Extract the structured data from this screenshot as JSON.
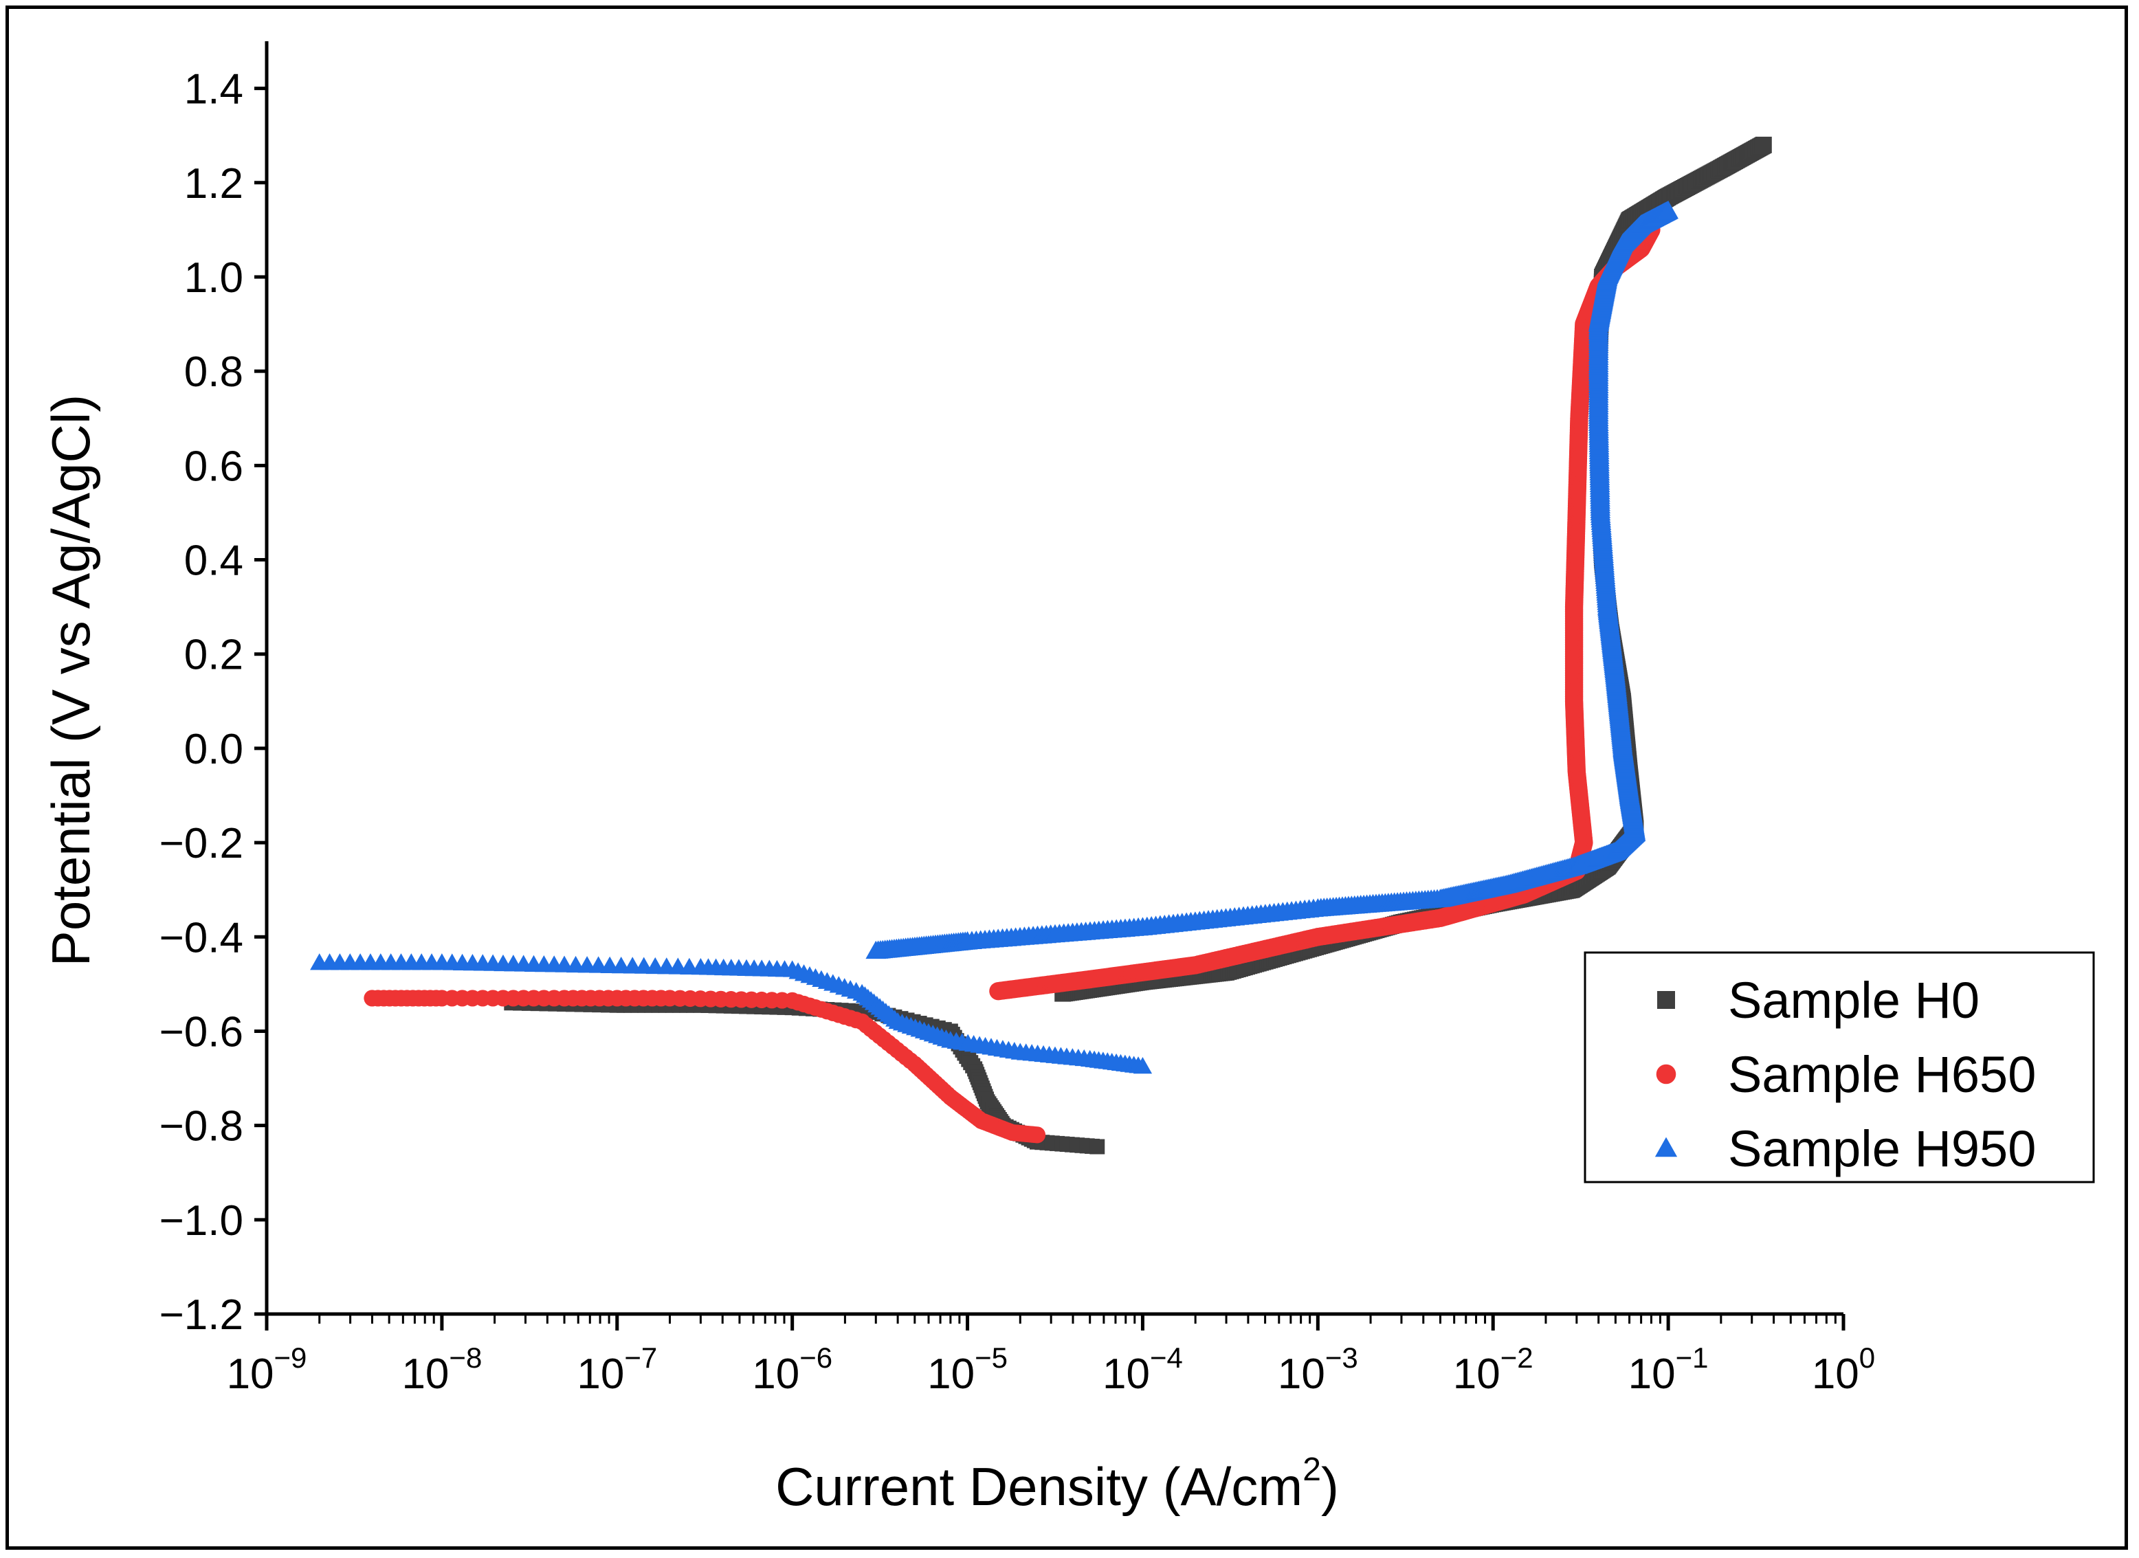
{
  "chart_data": {
    "type": "scatter",
    "title": "",
    "xlabel": {
      "main": "Current Density (A/cm",
      "sup": "2",
      "close": ")"
    },
    "ylabel": "Potential (V vs Ag/AgCl)",
    "x_scale": "log",
    "xlim": [
      1e-09,
      1
    ],
    "ylim": [
      -1.2,
      1.5
    ],
    "x_ticks": [
      {
        "base": "10",
        "exp": "−9",
        "value": 1e-09
      },
      {
        "base": "10",
        "exp": "−8",
        "value": 1e-08
      },
      {
        "base": "10",
        "exp": "−7",
        "value": 1e-07
      },
      {
        "base": "10",
        "exp": "−6",
        "value": 1e-06
      },
      {
        "base": "10",
        "exp": "−5",
        "value": 1e-05
      },
      {
        "base": "10",
        "exp": "−4",
        "value": 0.0001
      },
      {
        "base": "10",
        "exp": "−3",
        "value": 0.001
      },
      {
        "base": "10",
        "exp": "−2",
        "value": 0.01
      },
      {
        "base": "10",
        "exp": "−1",
        "value": 0.1
      },
      {
        "base": "10",
        "exp": "0",
        "value": 1
      }
    ],
    "y_ticks": [
      {
        "label": "1.4",
        "value": 1.4
      },
      {
        "label": "1.2",
        "value": 1.2
      },
      {
        "label": "1.0",
        "value": 1.0
      },
      {
        "label": "0.8",
        "value": 0.8
      },
      {
        "label": "0.6",
        "value": 0.6
      },
      {
        "label": "0.4",
        "value": 0.4
      },
      {
        "label": "0.2",
        "value": 0.2
      },
      {
        "label": "0.0",
        "value": 0.0
      },
      {
        "label": "−0.2",
        "value": -0.2
      },
      {
        "label": "−0.4",
        "value": -0.4
      },
      {
        "label": "−0.6",
        "value": -0.6
      },
      {
        "label": "−0.8",
        "value": -0.8
      },
      {
        "label": "−1.0",
        "value": -1.0
      },
      {
        "label": "−1.2",
        "value": -1.2
      }
    ],
    "legend_position": "lower-right",
    "series": [
      {
        "name": "Sample H0",
        "marker": "square",
        "color": "#3f3f3f",
        "anodic": [
          [
            3.5e-05,
            -0.52
          ],
          [
            0.0001,
            -0.495
          ],
          [
            0.0003,
            -0.475
          ],
          [
            0.001,
            -0.42
          ],
          [
            0.003,
            -0.37
          ],
          [
            0.01,
            -0.33
          ],
          [
            0.028,
            -0.3
          ],
          [
            0.045,
            -0.25
          ],
          [
            0.065,
            -0.17
          ],
          [
            0.06,
            -0.05
          ],
          [
            0.055,
            0.1
          ],
          [
            0.047,
            0.25
          ],
          [
            0.042,
            0.4
          ],
          [
            0.04,
            0.6
          ],
          [
            0.04,
            0.8
          ],
          [
            0.042,
            1.0
          ],
          [
            0.06,
            1.12
          ],
          [
            0.1,
            1.17
          ],
          [
            0.2,
            1.23
          ],
          [
            0.35,
            1.28
          ]
        ],
        "cathodic": [
          [
            2.5e-08,
            -0.54
          ],
          [
            1e-07,
            -0.545
          ],
          [
            3e-07,
            -0.545
          ],
          [
            1e-06,
            -0.55
          ],
          [
            3e-06,
            -0.56
          ],
          [
            8e-06,
            -0.6
          ],
          [
            1.1e-05,
            -0.68
          ],
          [
            1.3e-05,
            -0.75
          ],
          [
            1.6e-05,
            -0.8
          ],
          [
            2.5e-05,
            -0.835
          ],
          [
            5.5e-05,
            -0.845
          ]
        ]
      },
      {
        "name": "Sample H650",
        "marker": "circle",
        "color": "#ee3434",
        "anodic": [
          [
            1.5e-05,
            -0.515
          ],
          [
            5e-05,
            -0.49
          ],
          [
            0.0002,
            -0.46
          ],
          [
            0.001,
            -0.4
          ],
          [
            0.005,
            -0.36
          ],
          [
            0.015,
            -0.31
          ],
          [
            0.03,
            -0.26
          ],
          [
            0.033,
            -0.2
          ],
          [
            0.03,
            -0.05
          ],
          [
            0.029,
            0.1
          ],
          [
            0.029,
            0.3
          ],
          [
            0.03,
            0.5
          ],
          [
            0.031,
            0.7
          ],
          [
            0.033,
            0.9
          ],
          [
            0.04,
            0.98
          ],
          [
            0.05,
            1.02
          ],
          [
            0.07,
            1.06
          ],
          [
            0.08,
            1.1
          ]
        ],
        "cathodic": [
          [
            4e-09,
            -0.53
          ],
          [
            1e-08,
            -0.53
          ],
          [
            5e-08,
            -0.53
          ],
          [
            2e-07,
            -0.53
          ],
          [
            1e-06,
            -0.535
          ],
          [
            2.5e-06,
            -0.58
          ],
          [
            5e-06,
            -0.67
          ],
          [
            8e-06,
            -0.74
          ],
          [
            1.2e-05,
            -0.79
          ],
          [
            1.8e-05,
            -0.815
          ],
          [
            2.5e-05,
            -0.82
          ]
        ]
      },
      {
        "name": "Sample H950",
        "marker": "triangle",
        "color": "#1f6ee3",
        "anodic": [
          [
            3e-06,
            -0.43
          ],
          [
            1e-05,
            -0.41
          ],
          [
            0.0001,
            -0.38
          ],
          [
            0.001,
            -0.34
          ],
          [
            0.005,
            -0.32
          ],
          [
            0.012,
            -0.29
          ],
          [
            0.03,
            -0.25
          ],
          [
            0.05,
            -0.22
          ],
          [
            0.065,
            -0.18
          ],
          [
            0.06,
            -0.1
          ],
          [
            0.055,
            0.0
          ],
          [
            0.05,
            0.15
          ],
          [
            0.045,
            0.3
          ],
          [
            0.041,
            0.5
          ],
          [
            0.04,
            0.7
          ],
          [
            0.04,
            0.9
          ],
          [
            0.045,
            1.0
          ],
          [
            0.055,
            1.07
          ],
          [
            0.07,
            1.11
          ],
          [
            0.1,
            1.14
          ]
        ],
        "cathodic": [
          [
            2e-09,
            -0.455
          ],
          [
            1e-08,
            -0.455
          ],
          [
            5e-08,
            -0.46
          ],
          [
            3e-07,
            -0.465
          ],
          [
            1e-06,
            -0.47
          ],
          [
            2.5e-06,
            -0.52
          ],
          [
            4e-06,
            -0.58
          ],
          [
            8e-06,
            -0.62
          ],
          [
            2e-05,
            -0.645
          ],
          [
            5e-05,
            -0.66
          ],
          [
            0.0001,
            -0.675
          ]
        ]
      }
    ]
  }
}
